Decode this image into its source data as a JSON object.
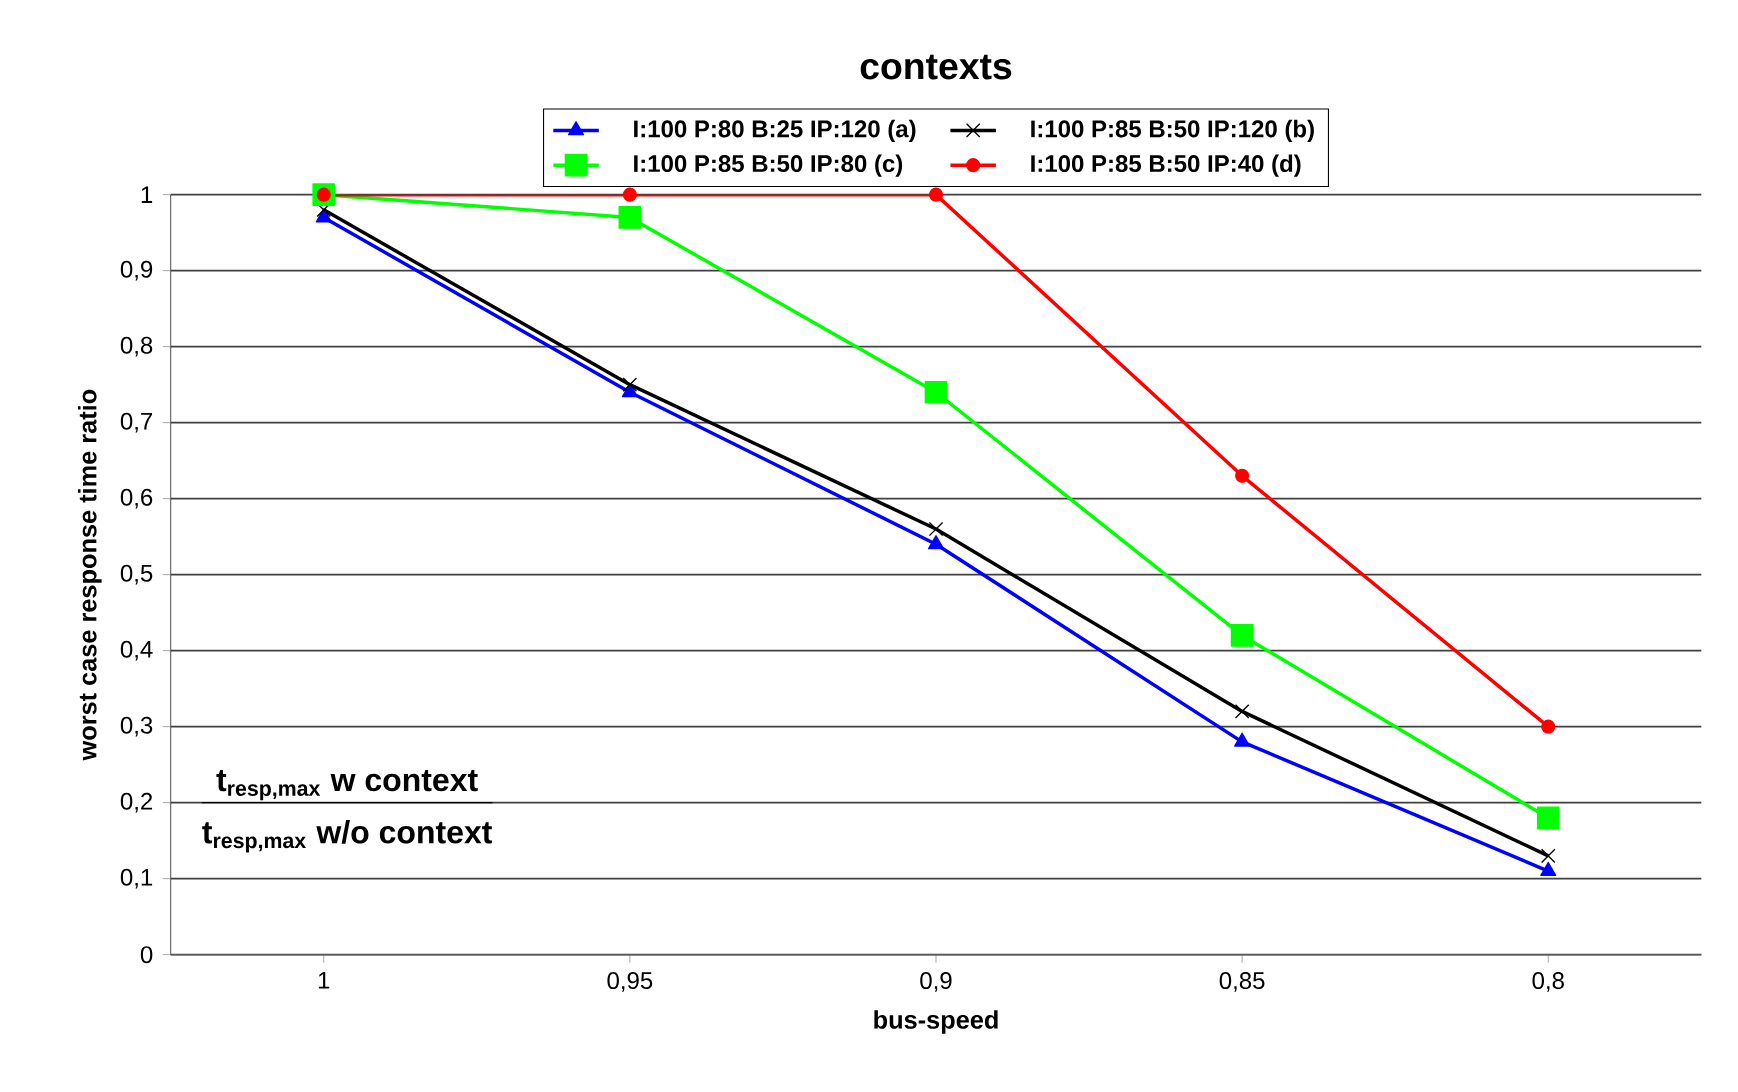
{
  "chart_data": {
    "type": "line",
    "title": "contexts",
    "xlabel": "bus-speed",
    "ylabel": "worst case response time ratio",
    "categories": [
      "1",
      "0,95",
      "0,9",
      "0,85",
      "0,8"
    ],
    "series": [
      {
        "name": "I:100 P:80 B:25 IP:120 (a)",
        "color": "#0000ff",
        "marker": "triangle",
        "values": [
          0.97,
          0.74,
          0.54,
          0.28,
          0.11
        ]
      },
      {
        "name": "I:100 P:85 B:50 IP:120 (b)",
        "color": "#000000",
        "marker": "cross",
        "values": [
          0.98,
          0.75,
          0.56,
          0.32,
          0.13
        ]
      },
      {
        "name": "I:100 P:85 B:50 IP:80 (c)",
        "color": "#00ff00",
        "marker": "square",
        "values": [
          1,
          0.97,
          0.74,
          0.42,
          0.18
        ]
      },
      {
        "name": "I:100 P:85 B:50 IP:40 (d)",
        "color": "#ff0000",
        "marker": "circle",
        "values": [
          1,
          1,
          1,
          0.63,
          0.3
        ]
      }
    ],
    "ylim": [
      0,
      1
    ],
    "yticks": [
      0,
      {
        "value": 0.1,
        "label": "0,1"
      },
      {
        "value": 0.2,
        "label": "0,2"
      },
      {
        "value": 0.3,
        "label": "0,3"
      },
      {
        "value": 0.4,
        "label": "0,4"
      },
      {
        "value": 0.5,
        "label": "0,5"
      },
      {
        "value": 0.6,
        "label": "0,6"
      },
      {
        "value": 0.7,
        "label": "0,7"
      },
      {
        "value": 0.8,
        "label": "0,8"
      },
      {
        "value": 0.9,
        "label": "0,9"
      },
      1
    ],
    "grid": "y",
    "legend": "top",
    "annotations": [
      "t$_{resp,max}$ w context",
      "t$_{resp,max}$ w/o context"
    ]
  }
}
